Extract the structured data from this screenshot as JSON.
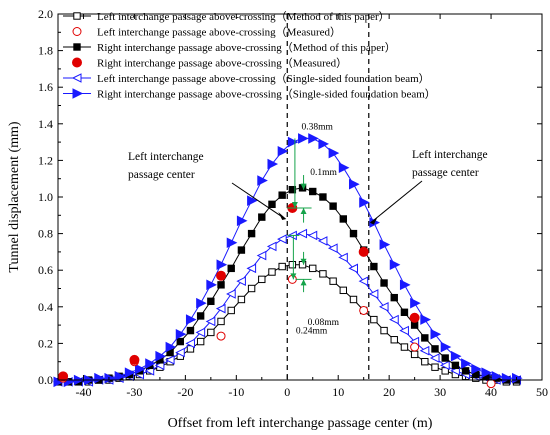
{
  "chart_data": {
    "type": "line",
    "xlabel": "Offset from left interchange passage center (m)",
    "ylabel": "Tunnel displacement (mm)",
    "xlim": [
      -45,
      50
    ],
    "ylim": [
      0,
      2.0
    ],
    "xticks": [
      -40,
      -30,
      -20,
      -10,
      0,
      10,
      20,
      30,
      40,
      50
    ],
    "yticks": [
      0.0,
      0.2,
      0.4,
      0.6,
      0.8,
      1.0,
      1.2,
      1.4,
      1.6,
      1.8,
      2.0
    ],
    "xtick_labels": [
      "-40",
      "-30",
      "-20",
      "-10",
      "0",
      "10",
      "20",
      "30",
      "40",
      "50"
    ],
    "ytick_labels": [
      "0.0",
      "0.2",
      "0.4",
      "0.6",
      "0.8",
      "1.0",
      "1.2",
      "1.4",
      "1.6",
      "1.8",
      "2.0"
    ],
    "grid": false,
    "legend_position": "top-left",
    "series": [
      {
        "name": "Left interchange passage above-crossing（Method of this paper）",
        "color": "#000000",
        "marker": "square-open",
        "line": "solid",
        "points": [
          [
            -45,
            -0.01
          ],
          [
            -43,
            -0.01
          ],
          [
            -41,
            -0.01
          ],
          [
            -39,
            -0.01
          ],
          [
            -37,
            0.0
          ],
          [
            -35,
            0.0
          ],
          [
            -33,
            0.01
          ],
          [
            -31,
            0.02
          ],
          [
            -29,
            0.03
          ],
          [
            -27,
            0.05
          ],
          [
            -25,
            0.07
          ],
          [
            -23,
            0.1
          ],
          [
            -21,
            0.13
          ],
          [
            -19,
            0.17
          ],
          [
            -17,
            0.21
          ],
          [
            -15,
            0.26
          ],
          [
            -13,
            0.32
          ],
          [
            -11,
            0.38
          ],
          [
            -9,
            0.44
          ],
          [
            -7,
            0.5
          ],
          [
            -5,
            0.55
          ],
          [
            -3,
            0.59
          ],
          [
            -1,
            0.62
          ],
          [
            1,
            0.63
          ],
          [
            3,
            0.63
          ],
          [
            5,
            0.61
          ],
          [
            7,
            0.58
          ],
          [
            9,
            0.54
          ],
          [
            11,
            0.49
          ],
          [
            13,
            0.44
          ],
          [
            15,
            0.38
          ],
          [
            17,
            0.33
          ],
          [
            19,
            0.27
          ],
          [
            21,
            0.22
          ],
          [
            23,
            0.18
          ],
          [
            25,
            0.14
          ],
          [
            27,
            0.1
          ],
          [
            29,
            0.07
          ],
          [
            31,
            0.05
          ],
          [
            33,
            0.03
          ],
          [
            35,
            0.02
          ],
          [
            37,
            0.01
          ],
          [
            39,
            0.0
          ],
          [
            41,
            0.0
          ],
          [
            43,
            -0.01
          ],
          [
            45,
            -0.01
          ]
        ]
      },
      {
        "name": "Left interchange passage above-crossing（Measured）",
        "color": "#e00000",
        "marker": "circle-open",
        "line": "none",
        "points": [
          [
            -44,
            0.01
          ],
          [
            -30,
            0.1
          ],
          [
            -13,
            0.24
          ],
          [
            1,
            0.55
          ],
          [
            15,
            0.38
          ],
          [
            25,
            0.18
          ],
          [
            40,
            -0.02
          ]
        ]
      },
      {
        "name": "Right interchange passage above-crossing（Method of this paper）",
        "color": "#000000",
        "marker": "square-filled",
        "line": "solid",
        "points": [
          [
            -45,
            -0.01
          ],
          [
            -43,
            -0.01
          ],
          [
            -41,
            -0.01
          ],
          [
            -39,
            0.0
          ],
          [
            -37,
            0.0
          ],
          [
            -35,
            0.01
          ],
          [
            -33,
            0.02
          ],
          [
            -31,
            0.03
          ],
          [
            -29,
            0.05
          ],
          [
            -27,
            0.08
          ],
          [
            -25,
            0.11
          ],
          [
            -23,
            0.15
          ],
          [
            -21,
            0.21
          ],
          [
            -19,
            0.27
          ],
          [
            -17,
            0.35
          ],
          [
            -15,
            0.43
          ],
          [
            -13,
            0.52
          ],
          [
            -11,
            0.61
          ],
          [
            -9,
            0.71
          ],
          [
            -7,
            0.8
          ],
          [
            -5,
            0.89
          ],
          [
            -3,
            0.96
          ],
          [
            -1,
            1.01
          ],
          [
            1,
            1.04
          ],
          [
            3,
            1.05
          ],
          [
            5,
            1.03
          ],
          [
            7,
            1.0
          ],
          [
            9,
            0.95
          ],
          [
            11,
            0.88
          ],
          [
            13,
            0.8
          ],
          [
            15,
            0.71
          ],
          [
            17,
            0.62
          ],
          [
            19,
            0.53
          ],
          [
            21,
            0.45
          ],
          [
            23,
            0.37
          ],
          [
            25,
            0.3
          ],
          [
            27,
            0.23
          ],
          [
            29,
            0.17
          ],
          [
            31,
            0.12
          ],
          [
            33,
            0.08
          ],
          [
            35,
            0.05
          ],
          [
            37,
            0.03
          ],
          [
            39,
            0.02
          ],
          [
            41,
            0.01
          ],
          [
            43,
            0.0
          ],
          [
            45,
            0.0
          ]
        ]
      },
      {
        "name": "Right interchange passage above-crossing（Measured）",
        "color": "#e00000",
        "marker": "circle-filled",
        "line": "none",
        "points": [
          [
            -44,
            0.02
          ],
          [
            -30,
            0.11
          ],
          [
            -13,
            0.57
          ],
          [
            1,
            0.94
          ],
          [
            15,
            0.7
          ],
          [
            25,
            0.34
          ]
        ]
      },
      {
        "name": "Left interchange passage above-crossing（Single-sided foundation beam）",
        "color": "#1a1aff",
        "marker": "triangle-left-open",
        "line": "solid",
        "points": [
          [
            -45,
            -0.01
          ],
          [
            -43,
            -0.01
          ],
          [
            -41,
            -0.01
          ],
          [
            -39,
            -0.01
          ],
          [
            -37,
            0.0
          ],
          [
            -35,
            0.0
          ],
          [
            -33,
            0.01
          ],
          [
            -31,
            0.02
          ],
          [
            -29,
            0.03
          ],
          [
            -27,
            0.05
          ],
          [
            -25,
            0.08
          ],
          [
            -23,
            0.11
          ],
          [
            -21,
            0.15
          ],
          [
            -19,
            0.2
          ],
          [
            -17,
            0.26
          ],
          [
            -15,
            0.32
          ],
          [
            -13,
            0.39
          ],
          [
            -11,
            0.47
          ],
          [
            -9,
            0.54
          ],
          [
            -7,
            0.61
          ],
          [
            -5,
            0.68
          ],
          [
            -3,
            0.73
          ],
          [
            -1,
            0.77
          ],
          [
            1,
            0.79
          ],
          [
            3,
            0.8
          ],
          [
            5,
            0.79
          ],
          [
            7,
            0.76
          ],
          [
            9,
            0.72
          ],
          [
            11,
            0.67
          ],
          [
            13,
            0.61
          ],
          [
            15,
            0.54
          ],
          [
            17,
            0.47
          ],
          [
            19,
            0.4
          ],
          [
            21,
            0.33
          ],
          [
            23,
            0.27
          ],
          [
            25,
            0.21
          ],
          [
            27,
            0.16
          ],
          [
            29,
            0.12
          ],
          [
            31,
            0.08
          ],
          [
            33,
            0.05
          ],
          [
            35,
            0.03
          ],
          [
            37,
            0.02
          ],
          [
            39,
            0.01
          ],
          [
            41,
            0.0
          ],
          [
            43,
            0.0
          ],
          [
            45,
            0.0
          ]
        ]
      },
      {
        "name": "Right interchange passage above-crossing（Single-sided foundation beam）",
        "color": "#1a1aff",
        "marker": "triangle-right-filled",
        "line": "solid",
        "points": [
          [
            -45,
            -0.01
          ],
          [
            -43,
            -0.01
          ],
          [
            -41,
            0.0
          ],
          [
            -39,
            0.0
          ],
          [
            -37,
            0.01
          ],
          [
            -35,
            0.01
          ],
          [
            -33,
            0.02
          ],
          [
            -31,
            0.04
          ],
          [
            -29,
            0.06
          ],
          [
            -27,
            0.09
          ],
          [
            -25,
            0.13
          ],
          [
            -23,
            0.18
          ],
          [
            -21,
            0.25
          ],
          [
            -19,
            0.33
          ],
          [
            -17,
            0.42
          ],
          [
            -15,
            0.52
          ],
          [
            -13,
            0.63
          ],
          [
            -11,
            0.75
          ],
          [
            -9,
            0.87
          ],
          [
            -7,
            0.98
          ],
          [
            -5,
            1.09
          ],
          [
            -3,
            1.18
          ],
          [
            -1,
            1.25
          ],
          [
            1,
            1.3
          ],
          [
            3,
            1.32
          ],
          [
            5,
            1.32
          ],
          [
            7,
            1.29
          ],
          [
            9,
            1.24
          ],
          [
            11,
            1.16
          ],
          [
            13,
            1.07
          ],
          [
            15,
            0.97
          ],
          [
            17,
            0.86
          ],
          [
            19,
            0.74
          ],
          [
            21,
            0.63
          ],
          [
            23,
            0.52
          ],
          [
            25,
            0.42
          ],
          [
            27,
            0.33
          ],
          [
            29,
            0.25
          ],
          [
            31,
            0.18
          ],
          [
            33,
            0.13
          ],
          [
            35,
            0.09
          ],
          [
            37,
            0.06
          ],
          [
            39,
            0.04
          ],
          [
            41,
            0.02
          ],
          [
            43,
            0.01
          ],
          [
            45,
            0.01
          ]
        ]
      }
    ],
    "reference_lines": [
      {
        "x": 0,
        "style": "dashed"
      },
      {
        "x": 16,
        "style": "dashed"
      }
    ],
    "annotations": [
      {
        "text_lines": [
          "Left interchange",
          "passage center"
        ],
        "arrow_to": [
          0,
          0.88
        ],
        "side": "left"
      },
      {
        "text_lines": [
          "Left interchange",
          "passage center"
        ],
        "arrow_to": [
          16,
          0.86
        ],
        "side": "right"
      }
    ],
    "green_dimensions": [
      {
        "label": "0.38mm",
        "from_y": 1.32,
        "to_y": 0.94
      },
      {
        "label": "0.1mm",
        "from_y": 1.04,
        "to_y": 0.94
      },
      {
        "label": "0.08mm",
        "from_y": 0.63,
        "to_y": 0.55
      },
      {
        "label": "0.24mm",
        "from_y": 0.79,
        "to_y": 0.55
      }
    ]
  }
}
